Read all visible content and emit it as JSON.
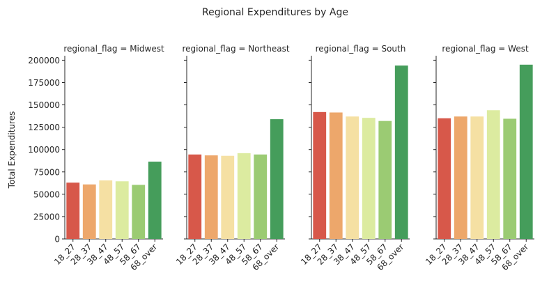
{
  "figure_title": "Regional Expenditures by Age",
  "chart_data": {
    "type": "bar",
    "title": "Regional Expenditures by Age",
    "ylabel": "Total Expenditures",
    "xlabel": "",
    "ylim": [
      0,
      205000
    ],
    "yticks": [
      0,
      25000,
      50000,
      75000,
      100000,
      125000,
      150000,
      175000,
      200000
    ],
    "ytick_labels": [
      "0",
      "25000",
      "50000",
      "75000",
      "100000",
      "125000",
      "150000",
      "175000",
      "200000"
    ],
    "categories": [
      "18_27",
      "28_37",
      "38_47",
      "48_57",
      "58_67",
      "68_over"
    ],
    "colors": [
      "#d7584a",
      "#eda76b",
      "#f5e0a3",
      "#dceba0",
      "#9bcb73",
      "#459d5b"
    ],
    "grid": false,
    "legend": "none",
    "panels": [
      {
        "title": "regional_flag = Midwest",
        "values": [
          63000,
          61000,
          65500,
          64500,
          60500,
          86500
        ]
      },
      {
        "title": "regional_flag = Northeast",
        "values": [
          94500,
          93500,
          93000,
          96000,
          94500,
          134000
        ]
      },
      {
        "title": "regional_flag = South",
        "values": [
          142000,
          141500,
          137000,
          135500,
          132000,
          194000
        ]
      },
      {
        "title": "regional_flag = West",
        "values": [
          135000,
          137000,
          137000,
          144000,
          134500,
          195000
        ]
      }
    ]
  }
}
